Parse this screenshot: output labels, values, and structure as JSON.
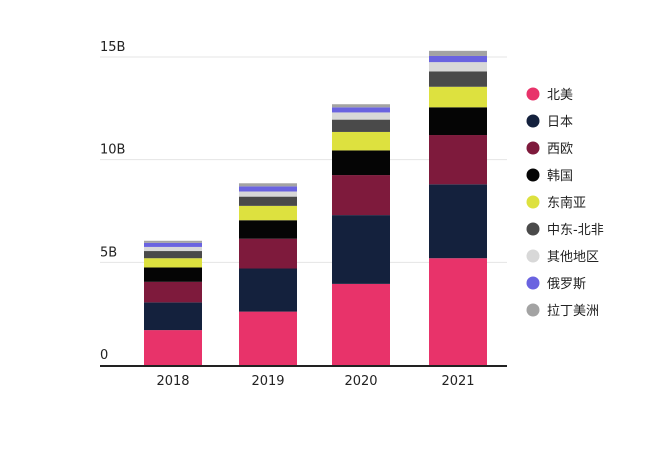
{
  "chart_data": {
    "type": "bar",
    "stacked": true,
    "categories": [
      "2018",
      "2019",
      "2020",
      "2021"
    ],
    "ylim": [
      0,
      15
    ],
    "y_ticks": [
      {
        "value": 0,
        "label": "0"
      },
      {
        "value": 5,
        "label": "5B"
      },
      {
        "value": 10,
        "label": "10B"
      },
      {
        "value": 15,
        "label": "15B"
      }
    ],
    "grid": true,
    "legend_position": "right",
    "series": [
      {
        "name": "北美",
        "color": "#e8336a",
        "values": [
          1.7,
          2.6,
          3.95,
          5.2
        ]
      },
      {
        "name": "日本",
        "color": "#14213d",
        "values": [
          1.35,
          2.1,
          3.35,
          3.6
        ]
      },
      {
        "name": "西欧",
        "color": "#7e1a3c",
        "values": [
          1.0,
          1.45,
          1.95,
          2.4
        ]
      },
      {
        "name": "韩国",
        "color": "#050505",
        "values": [
          0.7,
          0.9,
          1.2,
          1.35
        ]
      },
      {
        "name": "东南亚",
        "color": "#dde13f",
        "values": [
          0.45,
          0.7,
          0.9,
          1.0
        ]
      },
      {
        "name": "中东-北非",
        "color": "#4a4a4a",
        "values": [
          0.35,
          0.45,
          0.6,
          0.75
        ]
      },
      {
        "name": "其他地区",
        "color": "#d8d8d8",
        "values": [
          0.2,
          0.25,
          0.35,
          0.45
        ]
      },
      {
        "name": "俄罗斯",
        "color": "#6a63e0",
        "values": [
          0.2,
          0.25,
          0.25,
          0.3
        ]
      },
      {
        "name": "拉丁美洲",
        "color": "#a3a3a3",
        "values": [
          0.1,
          0.15,
          0.15,
          0.25
        ]
      }
    ]
  }
}
